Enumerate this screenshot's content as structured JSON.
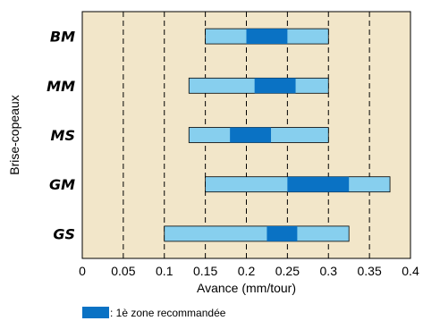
{
  "chart_data": {
    "type": "bar",
    "orientation": "horizontal-range",
    "xlabel": "Avance (mm/tour)",
    "ylabel": "Brise-copeaux",
    "xlim": [
      0,
      0.4
    ],
    "xticks": [
      "0",
      "0.05",
      "0.1",
      "0.15",
      "0.2",
      "0.25",
      "0.3",
      "0.35",
      "0.4"
    ],
    "grid": "vertical-dashed",
    "colors": {
      "background": "#f2e6c9",
      "range": "#87cfee",
      "recommended": "#0a72c4",
      "grid": "#000000"
    },
    "categories": [
      "BM",
      "MM",
      "MS",
      "GM",
      "GS"
    ],
    "series": [
      {
        "values": [
          [
            0.15,
            0.3
          ],
          [
            0.13,
            0.3
          ],
          [
            0.13,
            0.3
          ],
          [
            0.15,
            0.375
          ],
          [
            0.1,
            0.325
          ]
        ]
      },
      {
        "name": ": 1è zone recommandée",
        "values": [
          [
            0.2,
            0.25
          ],
          [
            0.21,
            0.26
          ],
          [
            0.18,
            0.23
          ],
          [
            0.25,
            0.325
          ],
          [
            0.225,
            0.262
          ]
        ]
      }
    ],
    "legend": {
      "placement": "bottom-left",
      "label": ": 1è zone recommandée"
    }
  }
}
